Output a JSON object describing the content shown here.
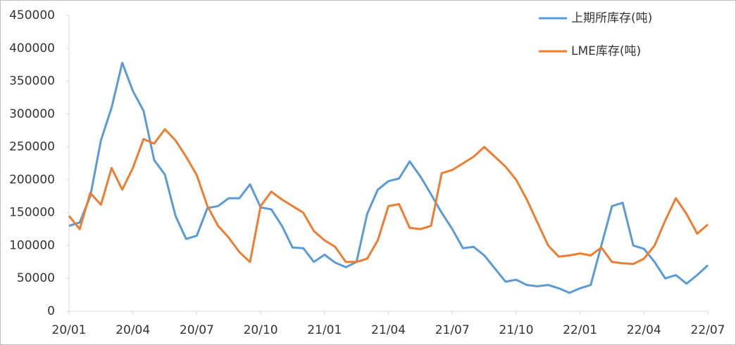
{
  "chart_data": {
    "type": "line",
    "categories": [
      "20/01",
      null,
      null,
      null,
      null,
      null,
      "20/04",
      null,
      null,
      null,
      null,
      null,
      "20/07",
      null,
      null,
      null,
      null,
      null,
      "20/10",
      null,
      null,
      null,
      null,
      null,
      "21/01",
      null,
      null,
      null,
      null,
      null,
      "21/04",
      null,
      null,
      null,
      null,
      null,
      "21/07",
      null,
      null,
      null,
      null,
      null,
      "21/10",
      null,
      null,
      null,
      null,
      null,
      "22/01",
      null,
      null,
      null,
      null,
      null,
      "22/04",
      null,
      null,
      null,
      null,
      null,
      "22/07"
    ],
    "series": [
      {
        "name": "上期所库存(吨)",
        "color": "#5b9bd5",
        "values": [
          130000,
          135000,
          175000,
          260000,
          310000,
          378000,
          335000,
          305000,
          230000,
          208000,
          145000,
          110000,
          115000,
          157000,
          160000,
          172000,
          172000,
          193000,
          158000,
          155000,
          130000,
          97000,
          96000,
          75000,
          86000,
          74000,
          67000,
          75000,
          148000,
          185000,
          198000,
          202000,
          228000,
          205000,
          178000,
          150000,
          125000,
          96000,
          98000,
          85000,
          65000,
          45000,
          48000,
          40000,
          38000,
          40000,
          35000,
          28000,
          35000,
          40000,
          100000,
          160000,
          165000,
          100000,
          95000,
          75000,
          50000,
          55000,
          42000,
          55000,
          70000
        ]
      },
      {
        "name": "LME库存(吨)",
        "color": "#ed7d31",
        "values": [
          145000,
          125000,
          180000,
          162000,
          218000,
          185000,
          218000,
          262000,
          255000,
          277000,
          260000,
          235000,
          207000,
          160000,
          130000,
          112000,
          90000,
          75000,
          160000,
          182000,
          170000,
          160000,
          150000,
          122000,
          108000,
          98000,
          75000,
          75000,
          80000,
          108000,
          160000,
          163000,
          127000,
          125000,
          130000,
          210000,
          215000,
          225000,
          235000,
          250000,
          235000,
          220000,
          200000,
          170000,
          135000,
          100000,
          83000,
          85000,
          88000,
          85000,
          97000,
          75000,
          73000,
          72000,
          80000,
          100000,
          138000,
          172000,
          148000,
          118000,
          132000
        ]
      }
    ],
    "ylim": [
      0,
      450000
    ],
    "yticks": [
      0,
      50000,
      100000,
      150000,
      200000,
      250000,
      300000,
      350000,
      400000,
      450000
    ],
    "grid": false,
    "legend": "upper right"
  }
}
